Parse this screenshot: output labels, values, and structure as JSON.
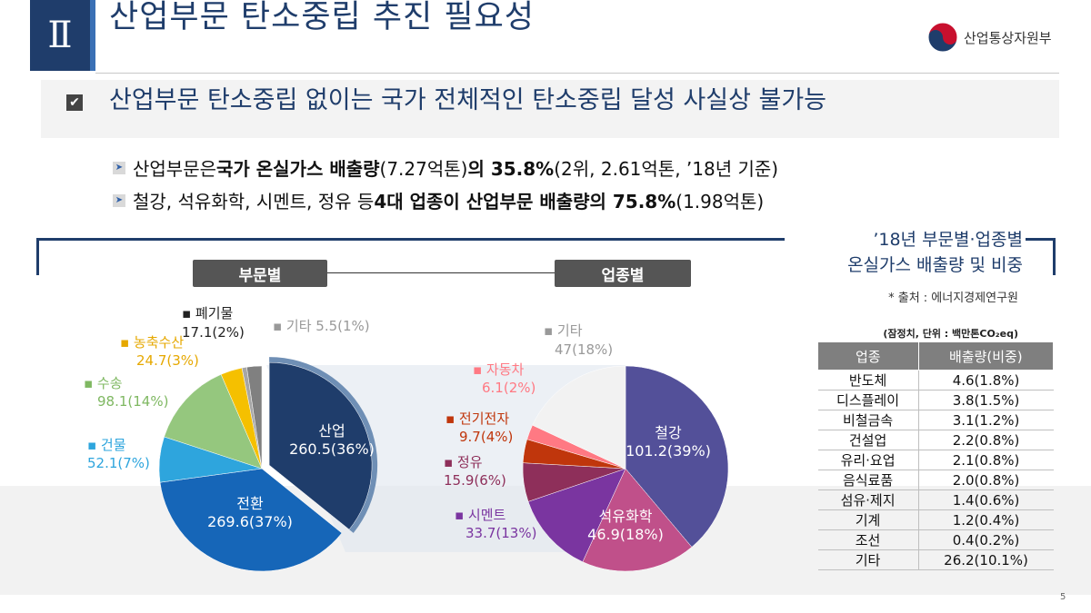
{
  "header": {
    "roman": "Ⅱ",
    "title": "산업부문 탄소중립 추진 필요성",
    "ministry": "산업통상자원부"
  },
  "headline": "산업부문 탄소중립 없이는 국가 전체적인 탄소중립 달성 사실상 불가능",
  "bullets": [
    {
      "p1": "산업부문은 ",
      "b1": "국가 온실가스 배출량",
      "p2": "(7.27억톤)",
      "b2": "의 35.8%",
      "p3": "(2위, 2.61억톤, ’18년 기준)"
    },
    {
      "p1": "철강, 석유화학, 시멘트, 정유 등 ",
      "b1": "4대 업종이 산업부문 배출량의 75.8%",
      "p2": "(1.98억톤)"
    }
  ],
  "chart_caption": {
    "line1": "’18년 부문별·업종별",
    "line2": "온실가스 배출량 및 비중"
  },
  "tabs": {
    "sector": "부문별",
    "industry": "업종별"
  },
  "source": "* 출처 : 에너지경제연구원",
  "unit": "(잠정치, 단위 : 백만톤CO₂eq)",
  "table": {
    "headers": [
      "업종",
      "배출량(비중)"
    ],
    "rows": [
      [
        "반도체",
        "4.6(1.8%)"
      ],
      [
        "디스플레이",
        "3.8(1.5%)"
      ],
      [
        "비철금속",
        "3.1(1.2%)"
      ],
      [
        "건설업",
        "2.2(0.8%)"
      ],
      [
        "유리·요업",
        "2.1(0.8%)"
      ],
      [
        "음식료품",
        "2.0(0.8%)"
      ],
      [
        "섬유·제지",
        "1.4(0.6%)"
      ],
      [
        "기계",
        "1.2(0.4%)"
      ],
      [
        "조선",
        "0.4(0.2%)"
      ],
      [
        "기타",
        "26.2(10.1%)"
      ]
    ]
  },
  "page_number": "5",
  "chart_data": [
    {
      "type": "pie",
      "title": "부문별",
      "unit": "백만톤CO2eq",
      "slices": [
        {
          "label": "산업",
          "value": 260.5,
          "pct": "36%",
          "display": "260.5(36%)",
          "color": "#1f3d6b"
        },
        {
          "label": "전환",
          "value": 269.6,
          "pct": "37%",
          "display": "269.6(37%)",
          "color": "#1666b8"
        },
        {
          "label": "건물",
          "value": 52.1,
          "pct": "7%",
          "display": "52.1(7%)",
          "color": "#2ea5dd"
        },
        {
          "label": "수송",
          "value": 98.1,
          "pct": "14%",
          "display": "98.1(14%)",
          "color": "#95c77e"
        },
        {
          "label": "농축수산",
          "value": 24.7,
          "pct": "3%",
          "display": "24.7(3%)",
          "color": "#f5c000"
        },
        {
          "label": "기타",
          "value": 5.5,
          "pct": "1%",
          "display": "5.5(1%)",
          "color": "#a6a6a6"
        },
        {
          "label": "폐기물",
          "value": 17.1,
          "pct": "2%",
          "display": "17.1(2%)",
          "color": "#808080"
        }
      ]
    },
    {
      "type": "pie",
      "title": "업종별",
      "unit": "백만톤CO2eq",
      "slices": [
        {
          "label": "철강",
          "value": 101.2,
          "pct": "39%",
          "display": "101.2(39%)",
          "color": "#535099"
        },
        {
          "label": "석유화학",
          "value": 46.9,
          "pct": "18%",
          "display": "46.9(18%)",
          "color": "#c0508a"
        },
        {
          "label": "시멘트",
          "value": 33.7,
          "pct": "13%",
          "display": "33.7(13%)",
          "color": "#7a35a0"
        },
        {
          "label": "정유",
          "value": 15.9,
          "pct": "6%",
          "display": "15.9(6%)",
          "color": "#8e2f5a"
        },
        {
          "label": "전기전자",
          "value": 9.7,
          "pct": "4%",
          "display": "9.7(4%)",
          "color": "#c0360c"
        },
        {
          "label": "자동차",
          "value": 6.1,
          "pct": "2%",
          "display": "6.1(2%)",
          "color": "#ff7983"
        },
        {
          "label": "기타",
          "value": 47,
          "pct": "18%",
          "display": "47(18%)",
          "color": "#f2f2f2"
        }
      ]
    }
  ]
}
